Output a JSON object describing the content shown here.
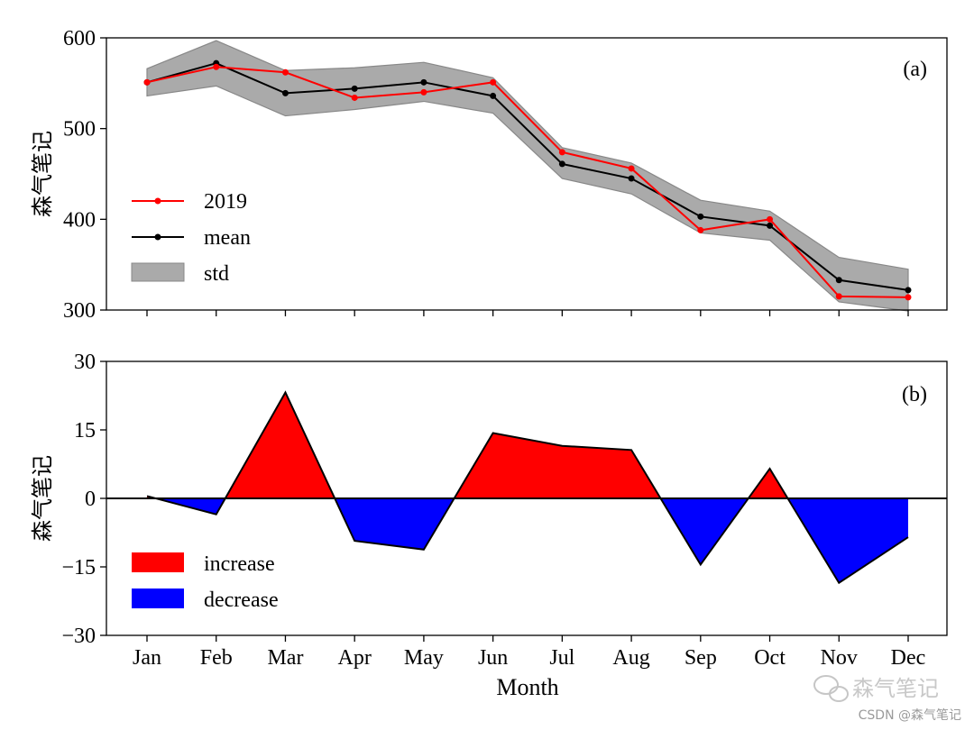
{
  "chart_data": [
    {
      "panel_label": "(a)",
      "type": "line",
      "ylabel": "森气笔记",
      "ylim": [
        300,
        600
      ],
      "yticks": [
        300,
        400,
        500,
        600
      ],
      "categories": [
        "Jan",
        "Feb",
        "Mar",
        "Apr",
        "May",
        "Jun",
        "Jul",
        "Aug",
        "Sep",
        "Oct",
        "Nov",
        "Dec"
      ],
      "series": [
        {
          "name": "2019",
          "color": "#ff0000",
          "values": [
            551,
            568,
            562,
            534,
            540,
            551,
            474,
            456,
            388,
            400,
            315,
            314
          ]
        },
        {
          "name": "mean",
          "color": "#000000",
          "values": [
            551,
            572,
            539,
            544,
            551,
            536,
            461,
            445,
            403,
            393,
            333,
            322
          ]
        }
      ],
      "band": {
        "name": "std",
        "color": "#aaaaaa",
        "upper": [
          566,
          597,
          564,
          567,
          573,
          556,
          479,
          462,
          421,
          409,
          358,
          345
        ],
        "lower": [
          536,
          547,
          514,
          521,
          530,
          517,
          445,
          428,
          385,
          377,
          309,
          299
        ]
      },
      "legend": {
        "position": "left",
        "entries": [
          "2019",
          "mean",
          "std"
        ]
      }
    },
    {
      "panel_label": "(b)",
      "type": "area",
      "ylabel": "森气笔记",
      "xlabel": "Month",
      "ylim": [
        -30,
        30
      ],
      "yticks": [
        -30,
        -15,
        0,
        15,
        30
      ],
      "ytick_labels": [
        "−30",
        "−15",
        "0",
        "15",
        "30"
      ],
      "categories": [
        "Jan",
        "Feb",
        "Mar",
        "Apr",
        "May",
        "Jun",
        "Jul",
        "Aug",
        "Sep",
        "Oct",
        "Nov",
        "Dec"
      ],
      "values": [
        0.5,
        -3.5,
        23.2,
        -9.3,
        -11.2,
        14.3,
        11.5,
        10.6,
        -14.5,
        6.5,
        -18.5,
        -8.5
      ],
      "colors": {
        "increase": "#ff0000",
        "decrease": "#0000ff"
      },
      "legend": {
        "position": "bottom-left",
        "entries": [
          "increase",
          "decrease"
        ]
      }
    }
  ],
  "watermark": {
    "wechat": "森气笔记",
    "csdn": "CSDN @森气笔记"
  }
}
